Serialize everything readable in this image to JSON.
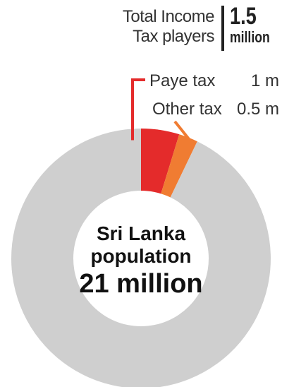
{
  "header": {
    "label_line1": "Total Income",
    "label_line2": "Tax players",
    "value": "1.5",
    "unit": "million"
  },
  "legend": [
    {
      "label": "Paye tax",
      "value": "1 m"
    },
    {
      "label": "Other tax",
      "value": "0.5 m"
    }
  ],
  "center": {
    "line1": "Sri Lanka",
    "line2": "population",
    "line3": "21 million"
  },
  "colors": {
    "paye": "#e42b2b",
    "other": "#f07c32",
    "rest": "#cfcfcf"
  },
  "chart_data": {
    "type": "pie",
    "donut": true,
    "title": "",
    "slices": [
      {
        "label": "Paye tax",
        "value": 1
      },
      {
        "label": "Other tax",
        "value": 0.5
      },
      {
        "label": "Sri Lanka population",
        "value": 19.5
      }
    ],
    "total": 21
  }
}
